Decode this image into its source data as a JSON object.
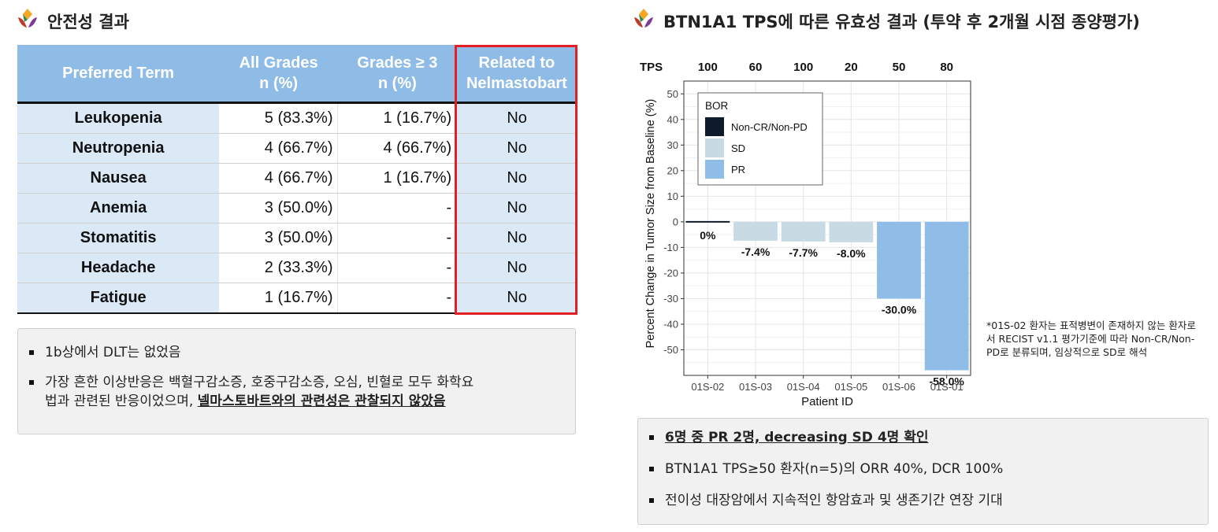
{
  "left": {
    "title": "안전성 결과",
    "table": {
      "headers": [
        {
          "line1": "Preferred Term",
          "line2": ""
        },
        {
          "line1": "All Grades",
          "line2": "n (%)"
        },
        {
          "line1": "Grades ≥ 3",
          "line2": "n (%)"
        },
        {
          "line1": "Related to",
          "line2": "Nelmastobart"
        }
      ],
      "rows": [
        {
          "term": "Leukopenia",
          "all": "5 (83.3%)",
          "g3": "1 (16.7%)",
          "related": "No"
        },
        {
          "term": "Neutropenia",
          "all": "4 (66.7%)",
          "g3": "4 (66.7%)",
          "related": "No"
        },
        {
          "term": "Nausea",
          "all": "4 (66.7%)",
          "g3": "1 (16.7%)",
          "related": "No"
        },
        {
          "term": "Anemia",
          "all": "3 (50.0%)",
          "g3": "-",
          "related": "No"
        },
        {
          "term": "Stomatitis",
          "all": "3 (50.0%)",
          "g3": "-",
          "related": "No"
        },
        {
          "term": "Headache",
          "all": "2 (33.3%)",
          "g3": "-",
          "related": "No"
        },
        {
          "term": "Fatigue",
          "all": "1 (16.7%)",
          "g3": "-",
          "related": "No"
        }
      ]
    },
    "notes": {
      "b1": "1b상에서 DLT는 없었음",
      "b2_text_line1": "가장 흔한 이상반응은 백혈구감소증, 호중구감소증, 오심, 빈혈로 모두 화학요",
      "b2_text_line2": "법과 관련된 반응이었으며, ",
      "b2_emph": "넬마스토바트와의 관련성은 관찰되지 않았음"
    }
  },
  "right": {
    "title": "BTN1A1 TPS에 따른 유효성 결과 (투약 후 2개월 시점 종양평가)",
    "footnote": "*01S-02 환자는 표적병변이 존재하지 않는 환자로서 RECIST v1.1 평가기준에 따라 Non-CR/Non-PD로 분류되며, 임상적으로 SD로 해석",
    "notes": {
      "b1": "6명 중 PR 2명, decreasing SD 4명 확인",
      "b2": "BTN1A1 TPS≥50 환자(n=5)의 ORR 40%, DCR 100%",
      "b3": "전이성 대장암에서 지속적인 항암효과 및 생존기간 연장 기대"
    }
  },
  "chart_data": {
    "type": "bar",
    "xlabel": "Patient ID",
    "ylabel": "Percent Change in Tumor Size from Baseline (%)",
    "categories": [
      "01S-02",
      "01S-03",
      "01S-04",
      "01S-05",
      "01S-06",
      "01S-01"
    ],
    "values": [
      0,
      -7.4,
      -7.7,
      -8.0,
      -30.0,
      -58.0
    ],
    "value_labels": [
      "0%",
      "-7.4%",
      "-7.7%",
      "-8.0%",
      "-30.0%",
      "-58.0%"
    ],
    "tps_label": "TPS",
    "tps": [
      "100",
      "60",
      "100",
      "20",
      "50",
      "80"
    ],
    "bor": [
      "Non-CR/Non-PD",
      "SD",
      "SD",
      "SD",
      "PR",
      "PR"
    ],
    "ylim": [
      -60,
      55
    ],
    "yticks": [
      50,
      40,
      30,
      20,
      10,
      0,
      -10,
      -20,
      -30,
      -40,
      -50
    ],
    "grid": true,
    "legend": {
      "title": "BOR",
      "placement": "top-left",
      "entries": [
        {
          "label": "Non-CR/Non-PD",
          "color": "#0d1b2a"
        },
        {
          "label": "SD",
          "color": "#c8dbe4"
        },
        {
          "label": "PR",
          "color": "#8fbde8"
        }
      ]
    }
  }
}
